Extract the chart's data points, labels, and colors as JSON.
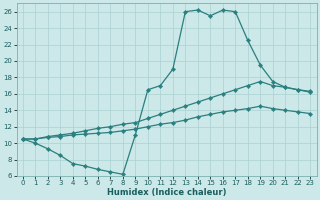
{
  "xlabel": "Humidex (Indice chaleur)",
  "bg_color": "#cce8e8",
  "line_color": "#2a7f7f",
  "grid_color": "#aad0d0",
  "xlim": [
    -0.5,
    23.5
  ],
  "ylim": [
    6,
    27
  ],
  "xticks": [
    0,
    1,
    2,
    3,
    4,
    5,
    6,
    7,
    8,
    9,
    10,
    11,
    12,
    13,
    14,
    15,
    16,
    17,
    18,
    19,
    20,
    21,
    22,
    23
  ],
  "yticks": [
    6,
    8,
    10,
    12,
    14,
    16,
    18,
    20,
    22,
    24,
    26
  ],
  "line1_x": [
    0,
    1,
    2,
    3,
    4,
    5,
    6,
    7,
    8,
    9,
    10,
    11,
    12,
    13,
    14,
    15,
    16,
    17,
    18,
    19,
    20,
    21,
    22,
    23
  ],
  "line1_y": [
    10.5,
    10.0,
    9.3,
    8.5,
    7.5,
    7.2,
    6.8,
    6.5,
    6.2,
    11.0,
    16.5,
    17.0,
    19.0,
    26.0,
    26.2,
    25.5,
    26.2,
    26.0,
    22.5,
    19.5,
    17.5,
    16.8,
    16.5,
    16.2
  ],
  "line2_x": [
    0,
    1,
    2,
    3,
    4,
    5,
    6,
    7,
    8,
    9,
    10,
    11,
    12,
    13,
    14,
    15,
    16,
    17,
    18,
    19,
    20,
    21,
    22,
    23
  ],
  "line2_y": [
    10.5,
    10.5,
    10.8,
    11.0,
    11.2,
    11.5,
    11.8,
    12.0,
    12.3,
    12.5,
    13.0,
    13.5,
    14.0,
    14.5,
    15.0,
    15.5,
    16.0,
    16.5,
    17.0,
    17.5,
    17.0,
    16.8,
    16.5,
    16.3
  ],
  "line3_x": [
    0,
    1,
    2,
    3,
    4,
    5,
    6,
    7,
    8,
    9,
    10,
    11,
    12,
    13,
    14,
    15,
    16,
    17,
    18,
    19,
    20,
    21,
    22,
    23
  ],
  "line3_y": [
    10.5,
    10.5,
    10.7,
    10.8,
    11.0,
    11.1,
    11.2,
    11.3,
    11.5,
    11.7,
    12.0,
    12.3,
    12.5,
    12.8,
    13.2,
    13.5,
    13.8,
    14.0,
    14.2,
    14.5,
    14.2,
    14.0,
    13.8,
    13.6
  ]
}
